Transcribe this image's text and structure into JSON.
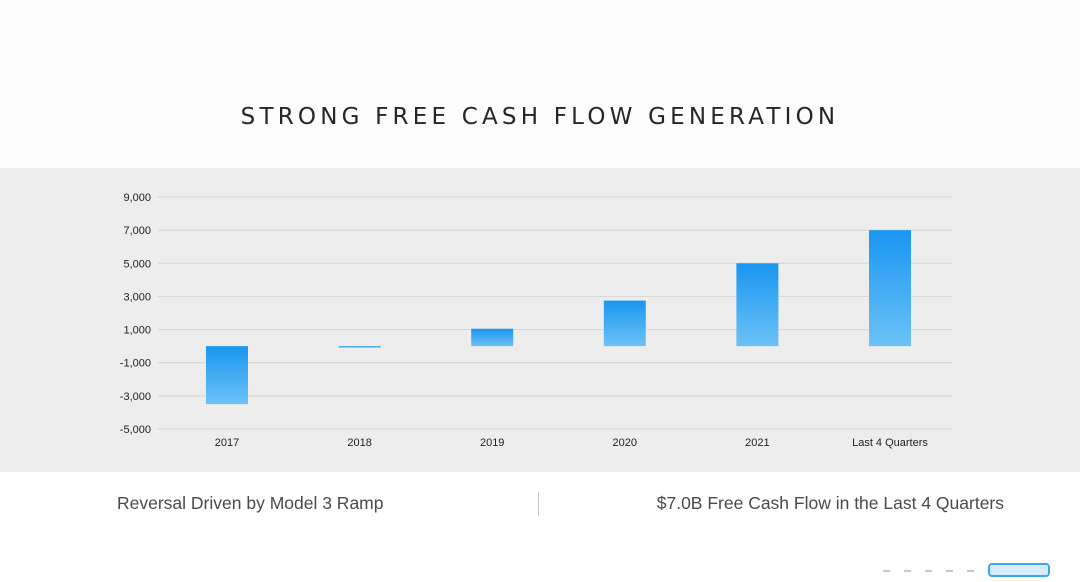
{
  "slide": {
    "title": "STRONG FREE CASH FLOW GENERATION",
    "caption_left": "Reversal Driven by Model 3 Ramp",
    "caption_right": "$7.0B Free Cash Flow in the Last 4 Quarters"
  },
  "colors": {
    "bar_top": "#1a96f0",
    "bar_bottom": "#6cc2f7",
    "chart_background": "#ededed",
    "grid": "#d4d4d4"
  },
  "branding": {
    "logo": "tesla-live-logo"
  },
  "chart_data": {
    "type": "bar",
    "title": "",
    "xlabel": "",
    "ylabel": "",
    "categories": [
      "2017",
      "2018",
      "2019",
      "2020",
      "2021",
      "Last 4 Quarters"
    ],
    "values": [
      -3500,
      -50,
      1050,
      2750,
      5000,
      7000
    ],
    "yticks": [
      9000,
      7000,
      5000,
      3000,
      1000,
      -1000,
      -3000,
      -5000
    ],
    "ytick_labels": [
      "9,000",
      "7,000",
      "5,000",
      "3,000",
      "1,000",
      "-1,000",
      "-3,000",
      "-5,000"
    ],
    "ylim": [
      -5000,
      9000
    ],
    "grid": true,
    "legend": "none"
  }
}
